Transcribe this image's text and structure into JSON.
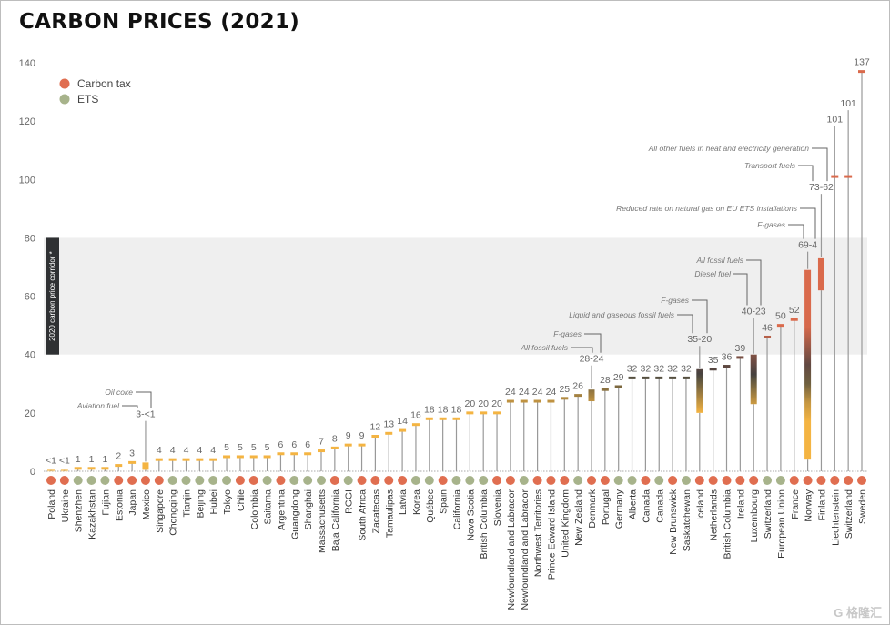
{
  "chart_data": {
    "type": "bar",
    "title": "CARBON PRICES (2021)",
    "xlabel": "",
    "ylabel": "",
    "ylim": [
      0,
      140
    ],
    "yticks": [
      0,
      20,
      40,
      60,
      80,
      100,
      120,
      140
    ],
    "band": {
      "range": [
        40,
        80
      ],
      "label": "2020 carbon price corridor *"
    },
    "legend": {
      "placement": "top-left",
      "entries": [
        {
          "key": "t",
          "label": "Carbon tax",
          "color": "#e06e50"
        },
        {
          "key": "e",
          "label": "ETS",
          "color": "#a7b38b"
        }
      ]
    },
    "items": [
      {
        "name": "Poland",
        "type": "t",
        "low": 0.4,
        "high": 0.4,
        "label": "<1"
      },
      {
        "name": "Ukraine",
        "type": "t",
        "low": 0.4,
        "high": 0.4,
        "label": "<1"
      },
      {
        "name": "Shenzhen",
        "type": "e",
        "low": 1,
        "high": 1,
        "label": "1"
      },
      {
        "name": "Kazakhstan",
        "type": "e",
        "low": 1,
        "high": 1,
        "label": "1"
      },
      {
        "name": "Fujian",
        "type": "e",
        "low": 1,
        "high": 1,
        "label": "1"
      },
      {
        "name": "Estonia",
        "type": "t",
        "low": 2,
        "high": 2,
        "label": "2"
      },
      {
        "name": "Japan",
        "type": "t",
        "low": 3,
        "high": 3,
        "label": "3"
      },
      {
        "name": "Mexico",
        "type": "t",
        "low": 0.5,
        "high": 3,
        "label": "3-<1"
      },
      {
        "name": "Singapore",
        "type": "t",
        "low": 4,
        "high": 4,
        "label": "4"
      },
      {
        "name": "Chongqing",
        "type": "e",
        "low": 4,
        "high": 4,
        "label": "4"
      },
      {
        "name": "Tianjin",
        "type": "e",
        "low": 4,
        "high": 4,
        "label": "4"
      },
      {
        "name": "Beijing",
        "type": "e",
        "low": 4,
        "high": 4,
        "label": "4"
      },
      {
        "name": "Hubei",
        "type": "e",
        "low": 4,
        "high": 4,
        "label": "4"
      },
      {
        "name": "Tokyo",
        "type": "e",
        "low": 5,
        "high": 5,
        "label": "5"
      },
      {
        "name": "Chile",
        "type": "t",
        "low": 5,
        "high": 5,
        "label": "5"
      },
      {
        "name": "Colombia",
        "type": "t",
        "low": 5,
        "high": 5,
        "label": "5"
      },
      {
        "name": "Saitama",
        "type": "e",
        "low": 5,
        "high": 5,
        "label": "5"
      },
      {
        "name": "Argentina",
        "type": "t",
        "low": 6,
        "high": 6,
        "label": "6"
      },
      {
        "name": "Guangdong",
        "type": "e",
        "low": 6,
        "high": 6,
        "label": "6"
      },
      {
        "name": "Shanghai",
        "type": "e",
        "low": 6,
        "high": 6,
        "label": "6"
      },
      {
        "name": "Massachusetts",
        "type": "e",
        "low": 7,
        "high": 7,
        "label": "7"
      },
      {
        "name": "Baja California",
        "type": "t",
        "low": 8,
        "high": 8,
        "label": "8"
      },
      {
        "name": "RGGI",
        "type": "e",
        "low": 9,
        "high": 9,
        "label": "9"
      },
      {
        "name": "South Africa",
        "type": "t",
        "low": 9,
        "high": 9,
        "label": "9"
      },
      {
        "name": "Zacatecas",
        "type": "t",
        "low": 12,
        "high": 12,
        "label": "12"
      },
      {
        "name": "Tamaulipas",
        "type": "t",
        "low": 13,
        "high": 13,
        "label": "13"
      },
      {
        "name": "Latvia",
        "type": "t",
        "low": 14,
        "high": 14,
        "label": "14"
      },
      {
        "name": "Korea",
        "type": "e",
        "low": 16,
        "high": 16,
        "label": "16"
      },
      {
        "name": "Québec",
        "type": "e",
        "low": 18,
        "high": 18,
        "label": "18"
      },
      {
        "name": "Spain",
        "type": "t",
        "low": 18,
        "high": 18,
        "label": "18"
      },
      {
        "name": "California",
        "type": "e",
        "low": 18,
        "high": 18,
        "label": "18"
      },
      {
        "name": "Nova Scotia",
        "type": "e",
        "low": 20,
        "high": 20,
        "label": "20"
      },
      {
        "name": "British Columbia",
        "type": "e",
        "low": 20,
        "high": 20,
        "label": "20"
      },
      {
        "name": "Slovenia",
        "type": "t",
        "low": 20,
        "high": 20,
        "label": "20"
      },
      {
        "name": "Newfoundland and Labrador",
        "type": "t",
        "low": 24,
        "high": 24,
        "label": "24"
      },
      {
        "name": "Newfoundland and Labrador",
        "type": "e",
        "low": 24,
        "high": 24,
        "label": "24"
      },
      {
        "name": "Northwest Territories",
        "type": "t",
        "low": 24,
        "high": 24,
        "label": "24"
      },
      {
        "name": "Prince Edward Island",
        "type": "t",
        "low": 24,
        "high": 24,
        "label": "24"
      },
      {
        "name": "United Kingdom",
        "type": "t",
        "low": 25,
        "high": 25,
        "label": "25"
      },
      {
        "name": "New Zealand",
        "type": "e",
        "low": 26,
        "high": 26,
        "label": "26"
      },
      {
        "name": "Denmark",
        "type": "t",
        "low": 24,
        "high": 28,
        "label": "28-24"
      },
      {
        "name": "Portugal",
        "type": "t",
        "low": 28,
        "high": 28,
        "label": "28"
      },
      {
        "name": "Germany",
        "type": "e",
        "low": 29,
        "high": 29,
        "label": "29"
      },
      {
        "name": "Alberta",
        "type": "e",
        "low": 32,
        "high": 32,
        "label": "32"
      },
      {
        "name": "Canada",
        "type": "t",
        "low": 32,
        "high": 32,
        "label": "32"
      },
      {
        "name": "Canada",
        "type": "e",
        "low": 32,
        "high": 32,
        "label": "32"
      },
      {
        "name": "New Brunswick",
        "type": "t",
        "low": 32,
        "high": 32,
        "label": "32"
      },
      {
        "name": "Saskatchewan",
        "type": "e",
        "low": 32,
        "high": 32,
        "label": "32"
      },
      {
        "name": "Iceland",
        "type": "t",
        "low": 20,
        "high": 35,
        "label": "35-20"
      },
      {
        "name": "Netherlands",
        "type": "t",
        "low": 35,
        "high": 35,
        "label": "35"
      },
      {
        "name": "British Columbia",
        "type": "t",
        "low": 36,
        "high": 36,
        "label": "36"
      },
      {
        "name": "Ireland",
        "type": "t",
        "low": 39,
        "high": 39,
        "label": "39"
      },
      {
        "name": "Luxembourg",
        "type": "t",
        "low": 23,
        "high": 40,
        "label": "40-23"
      },
      {
        "name": "Switzerland",
        "type": "e",
        "low": 46,
        "high": 46,
        "label": "46"
      },
      {
        "name": "European Union",
        "type": "e",
        "low": 50,
        "high": 50,
        "label": "50"
      },
      {
        "name": "France",
        "type": "t",
        "low": 52,
        "high": 52,
        "label": "52"
      },
      {
        "name": "Norway",
        "type": "t",
        "low": 4,
        "high": 69,
        "label": "69-4"
      },
      {
        "name": "Finland",
        "type": "t",
        "low": 62,
        "high": 73,
        "label": "73-62"
      },
      {
        "name": "Liechtenstein",
        "type": "t",
        "low": 101,
        "high": 101,
        "label": "101"
      },
      {
        "name": "Switzerland",
        "type": "t",
        "low": 101,
        "high": 101,
        "label": "101"
      },
      {
        "name": "Sweden",
        "type": "t",
        "low": 137,
        "high": 137,
        "label": "137"
      }
    ],
    "annotations": [
      {
        "target": "Mexico",
        "text": "Aviation fuel"
      },
      {
        "target": "Mexico",
        "text": "Oil coke"
      },
      {
        "target": "Denmark",
        "text": "All fossil fuels"
      },
      {
        "target": "Denmark",
        "text": "F-gases"
      },
      {
        "target": "Iceland",
        "text": "Liquid and gaseous fossil fuels"
      },
      {
        "target": "Iceland",
        "text": "F-gases"
      },
      {
        "target": "Luxembourg",
        "text": "Diesel fuel"
      },
      {
        "target": "Luxembourg",
        "text": "All fossil fuels"
      },
      {
        "target": "Norway",
        "text": "F-gases"
      },
      {
        "target": "Norway",
        "text": "Reduced rate on natural gas on EU ETS installations"
      },
      {
        "target": "Finland",
        "text": "Transport fuels"
      },
      {
        "target": "Finland",
        "text": "All other fuels in heat and electricity generation"
      }
    ]
  },
  "watermark": "格隆汇"
}
